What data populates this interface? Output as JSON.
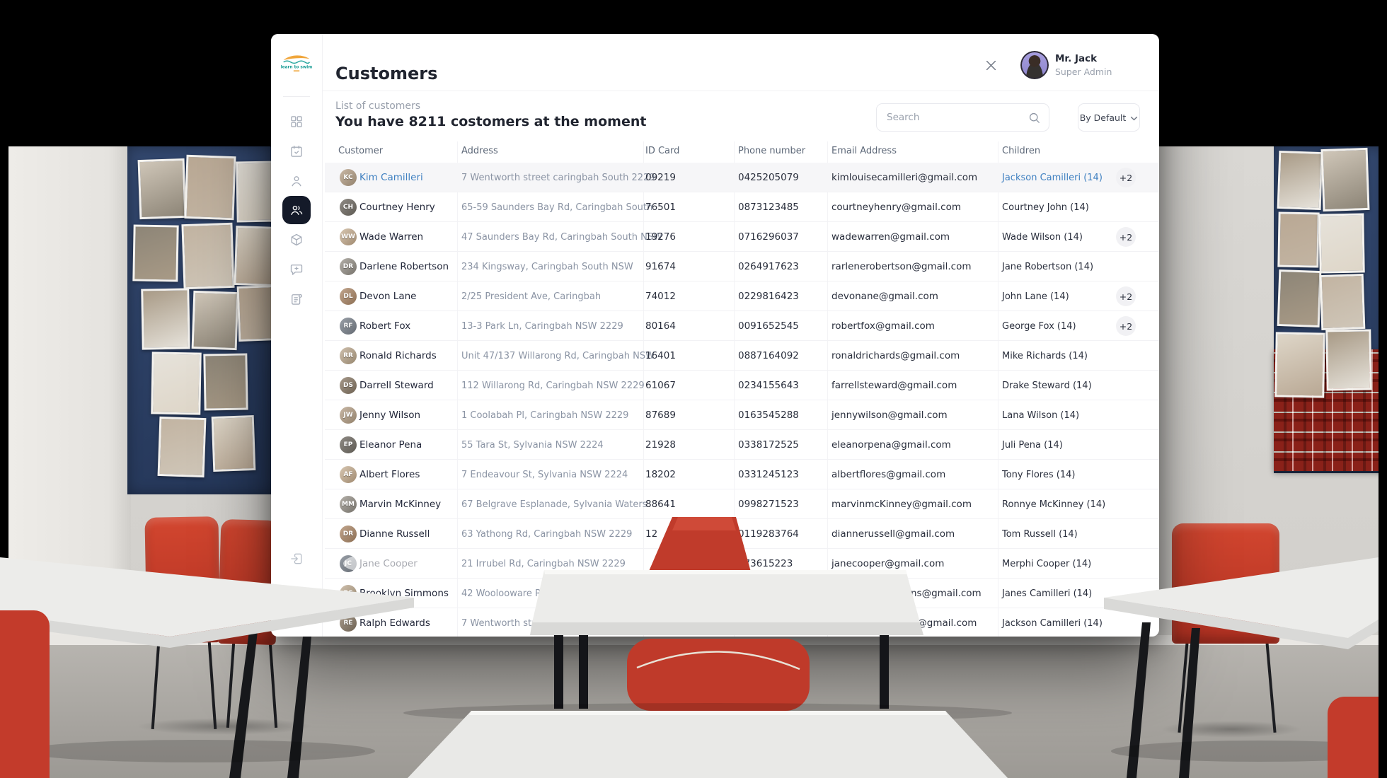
{
  "window": {
    "title": "Customers",
    "close_icon": "close-icon"
  },
  "user": {
    "name": "Mr. Jack",
    "role": "Super Admin"
  },
  "logo": {
    "text": "learn to swim"
  },
  "toolbar": {
    "list_label": "List of customers",
    "heading": "You have 8211 costomers at the moment",
    "search_placeholder": "Search",
    "search_icon": "search-icon",
    "sort_label": "By Default",
    "sort_chevron_icon": "chevron-down-icon"
  },
  "sidebar": {
    "items": [
      {
        "icon": "dashboard-grid-icon",
        "active": false
      },
      {
        "icon": "calendar-check-icon",
        "active": false
      },
      {
        "icon": "user-icon",
        "active": false
      },
      {
        "icon": "users-icon",
        "active": true
      },
      {
        "icon": "package-icon",
        "active": false
      },
      {
        "icon": "chat-add-icon",
        "active": false
      },
      {
        "icon": "notes-icon",
        "active": false
      }
    ],
    "logout_icon": "logout-icon"
  },
  "table": {
    "columns": [
      "Customer",
      "Address",
      "ID Card",
      "Phone number",
      "Email Address",
      "Children"
    ],
    "rows": [
      {
        "name": "Kim Camilleri",
        "address": "7 Wentworth street caringbah South 2229",
        "id_card": "09219",
        "phone": "0425205079",
        "email": "kimlouisecamilleri@gmail.com",
        "children": "Jackson Camilleri (14)",
        "badge": "+2",
        "selected": true,
        "email_partial": false
      },
      {
        "name": "Courtney Henry",
        "address": "65-59 Saunders Bay Rd, Caringbah South",
        "id_card": "76501",
        "phone": "0873123485",
        "email": "courtneyhenry@gmail.com",
        "children": "Courtney John (14)",
        "badge": "",
        "selected": false,
        "email_partial": false
      },
      {
        "name": "Wade Warren",
        "address": "47 Saunders Bay Rd, Caringbah South NSW",
        "id_card": "19276",
        "phone": "0716296037",
        "email": "wadewarren@gmail.com",
        "children": "Wade Wilson (14)",
        "badge": "+2",
        "selected": false,
        "email_partial": false
      },
      {
        "name": "Darlene Robertson",
        "address": "234 Kingsway, Caringbah South NSW",
        "id_card": "91674",
        "phone": "0264917623",
        "email": "rarlenerobertson@gmail.com",
        "children": "Jane Robertson (14)",
        "badge": "",
        "selected": false,
        "email_partial": false
      },
      {
        "name": "Devon Lane",
        "address": "2/25 President Ave, Caringbah",
        "id_card": "74012",
        "phone": "0229816423",
        "email": "devonane@gmail.com",
        "children": "John Lane (14)",
        "badge": "+2",
        "selected": false,
        "email_partial": false
      },
      {
        "name": "Robert Fox",
        "address": "13-3 Park Ln, Caringbah NSW 2229",
        "id_card": "80164",
        "phone": "0091652545",
        "email": "robertfox@gmail.com",
        "children": "George Fox (14)",
        "badge": "+2",
        "selected": false,
        "email_partial": false
      },
      {
        "name": "Ronald Richards",
        "address": "Unit 47/137 Willarong Rd, Caringbah NSW",
        "id_card": "16401",
        "phone": "0887164092",
        "email": "ronaldrichards@gmail.com",
        "children": "Mike Richards (14)",
        "badge": "",
        "selected": false,
        "email_partial": false
      },
      {
        "name": "Darrell Steward",
        "address": "112 Willarong Rd, Caringbah NSW 2229",
        "id_card": "61067",
        "phone": "0234155643",
        "email": "farrellsteward@gmail.com",
        "children": "Drake Steward (14)",
        "badge": "",
        "selected": false,
        "email_partial": false
      },
      {
        "name": "Jenny Wilson",
        "address": "1 Coolabah Pl, Caringbah NSW 2229",
        "id_card": "87689",
        "phone": "0163545288",
        "email": "jennywilson@gmail.com",
        "children": "Lana Wilson (14)",
        "badge": "",
        "selected": false,
        "email_partial": false
      },
      {
        "name": "Eleanor Pena",
        "address": "55 Tara St, Sylvania NSW 2224",
        "id_card": "21928",
        "phone": "0338172525",
        "email": "eleanorpena@gmail.com",
        "children": "Juli Pena (14)",
        "badge": "",
        "selected": false,
        "email_partial": false
      },
      {
        "name": "Albert Flores",
        "address": "7 Endeavour St, Sylvania NSW 2224",
        "id_card": "18202",
        "phone": "0331245123",
        "email": "albertflores@gmail.com",
        "children": "Tony Flores (14)",
        "badge": "",
        "selected": false,
        "email_partial": false
      },
      {
        "name": "Marvin McKinney",
        "address": "67 Belgrave Esplanade, Sylvania Waters",
        "id_card": "88641",
        "phone": "0998271523",
        "email": "marvinmcKinney@gmail.com",
        "children": "Ronnye McKinney (14)",
        "badge": "",
        "selected": false,
        "email_partial": false
      },
      {
        "name": "Dianne Russell",
        "address": "63 Yathong Rd, Caringbah NSW 2229",
        "id_card": "12",
        "phone": "0119283764",
        "email": "diannerussell@gmail.com",
        "children": "Tom Russell (14)",
        "badge": "",
        "selected": false,
        "email_partial": false
      },
      {
        "name": "Jane Cooper",
        "address": "21 Irrubel Rd, Caringbah NSW 2229",
        "id_card": "",
        "phone": "073615223",
        "email": "janecooper@gmail.com",
        "children": "Merphi Cooper (14)",
        "badge": "",
        "selected": false,
        "email_partial": false
      },
      {
        "name": "Brooklyn Simmons",
        "address": "42 Woolooware Rd, W",
        "id_card": "",
        "phone": "",
        "email": "ns@gmail.com",
        "children": "Janes Camilleri (14)",
        "badge": "",
        "selected": false,
        "email_partial": true
      },
      {
        "name": "Ralph Edwards",
        "address": "7 Wentworth stre",
        "id_card": "",
        "phone": "",
        "email": "ri@gmail.com",
        "children": "Jackson Camilleri (14)",
        "badge": "",
        "selected": false,
        "email_partial": true
      }
    ]
  },
  "colors": {
    "accent_blue": "#3F80C1",
    "sidebar_active": "#141A29",
    "row_highlight": "#F6F6F8",
    "chair_red": "#C23B2C"
  }
}
